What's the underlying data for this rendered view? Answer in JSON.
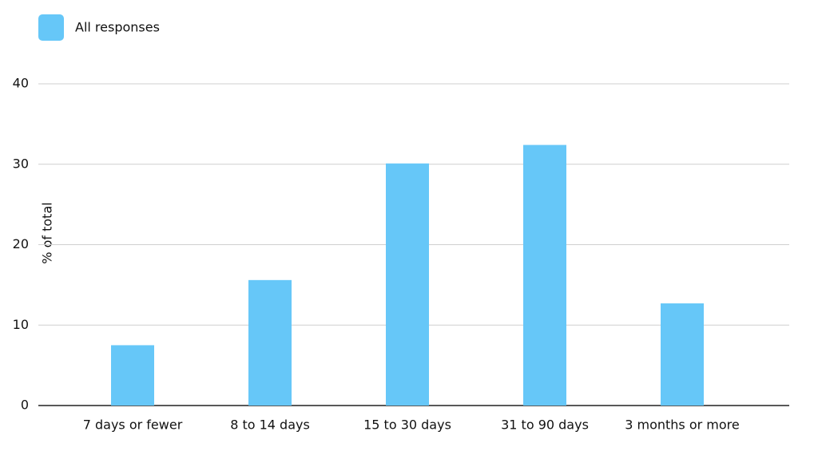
{
  "chart_data": {
    "type": "bar",
    "y_label": "% of total",
    "categories": [
      "7 days or fewer",
      "8 to 14 days",
      "15 to 30 days",
      "31 to 90 days",
      "3 months or more"
    ],
    "series": [
      {
        "name": "All responses",
        "color": "#66c7f8",
        "values": [
          7.5,
          15.6,
          30.1,
          32.4,
          12.7
        ]
      }
    ],
    "ylim": [
      0,
      40
    ],
    "yticks": [
      0,
      10,
      20,
      30,
      40
    ],
    "grid": true,
    "legend": "top-left"
  }
}
